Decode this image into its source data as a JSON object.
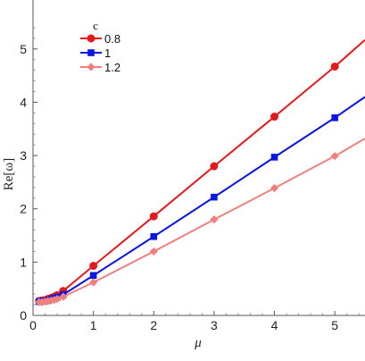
{
  "chart_data": {
    "type": "line",
    "xlabel": "μ",
    "ylabel": "Re[ω]",
    "xlim": [
      0,
      5.5
    ],
    "ylim": [
      0,
      5.5
    ],
    "x_ticks": [
      0,
      1,
      2,
      3,
      4,
      5
    ],
    "y_ticks": [
      0,
      1,
      2,
      3,
      4,
      5
    ],
    "legend_title": "c",
    "legend_position": "top-left",
    "grid": false,
    "series": [
      {
        "name": "0.8",
        "color": "#e31a1c",
        "marker": "circle",
        "x": [
          0.1,
          0.15,
          0.2,
          0.25,
          0.3,
          0.35,
          0.4,
          0.5,
          1,
          2,
          3,
          4,
          5
        ],
        "y": [
          0.27,
          0.28,
          0.29,
          0.31,
          0.33,
          0.35,
          0.38,
          0.46,
          0.93,
          1.86,
          2.8,
          3.73,
          4.67
        ],
        "line_end": [
          5.5,
          5.17
        ]
      },
      {
        "name": "1",
        "color": "#0b16e0",
        "marker": "square",
        "x": [
          0.1,
          0.15,
          0.2,
          0.25,
          0.3,
          0.35,
          0.4,
          0.5,
          1,
          2,
          3,
          4,
          5
        ],
        "y": [
          0.26,
          0.27,
          0.27,
          0.28,
          0.3,
          0.32,
          0.34,
          0.39,
          0.75,
          1.48,
          2.22,
          2.97,
          3.71
        ],
        "line_end": [
          5.5,
          4.1
        ]
      },
      {
        "name": "1.2",
        "color": "#f08080",
        "marker": "diamond",
        "x": [
          0.1,
          0.15,
          0.2,
          0.25,
          0.3,
          0.35,
          0.4,
          0.5,
          1,
          2,
          3,
          4,
          5
        ],
        "y": [
          0.25,
          0.25,
          0.26,
          0.27,
          0.28,
          0.29,
          0.31,
          0.35,
          0.62,
          1.2,
          1.8,
          2.39,
          2.99
        ],
        "line_end": [
          5.5,
          3.32
        ]
      }
    ]
  }
}
